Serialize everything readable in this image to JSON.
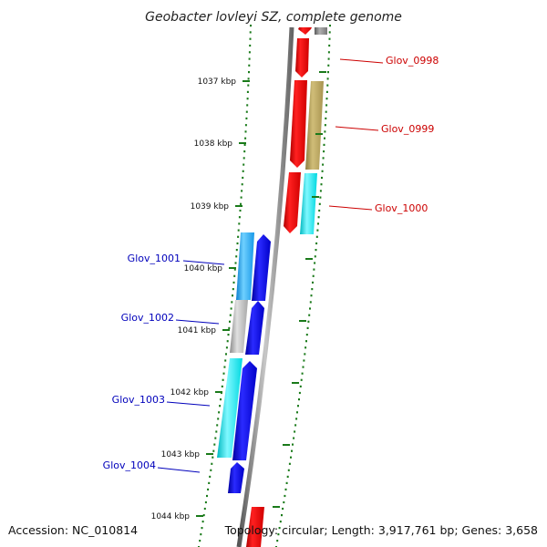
{
  "title": "Geobacter lovleyi SZ, complete genome",
  "footer": {
    "accession": "Accession: NC_010814",
    "summary": "Topology: circular; Length: 3,917,761 bp; Genes: 3,658"
  },
  "colors": {
    "backbone": "#888888",
    "ticks": "#1a7a1a",
    "forward_label": "#cc0000",
    "reverse_label": "#0000bb",
    "red": "#ff0000",
    "tan": "#b8a460",
    "cyan": "#00e0e8",
    "blue": "#0000e0",
    "lightblue": "#1ea6f0",
    "grey": "#b0b0b0",
    "darkgrey": "#8a8a8a"
  },
  "ticks": [
    {
      "label": "1037 kbp"
    },
    {
      "label": "1038 kbp"
    },
    {
      "label": "1039 kbp"
    },
    {
      "label": "1040 kbp"
    },
    {
      "label": "1041 kbp"
    },
    {
      "label": "1042 kbp"
    },
    {
      "label": "1043 kbp"
    },
    {
      "label": "1044 kbp"
    }
  ],
  "gene_labels": [
    {
      "name": "Glov_0998",
      "strand": "forward"
    },
    {
      "name": "Glov_0999",
      "strand": "forward"
    },
    {
      "name": "Glov_1000",
      "strand": "forward"
    },
    {
      "name": "Glov_1001",
      "strand": "reverse"
    },
    {
      "name": "Glov_1002",
      "strand": "reverse"
    },
    {
      "name": "Glov_1003",
      "strand": "reverse"
    },
    {
      "name": "Glov_1004",
      "strand": "reverse"
    }
  ]
}
